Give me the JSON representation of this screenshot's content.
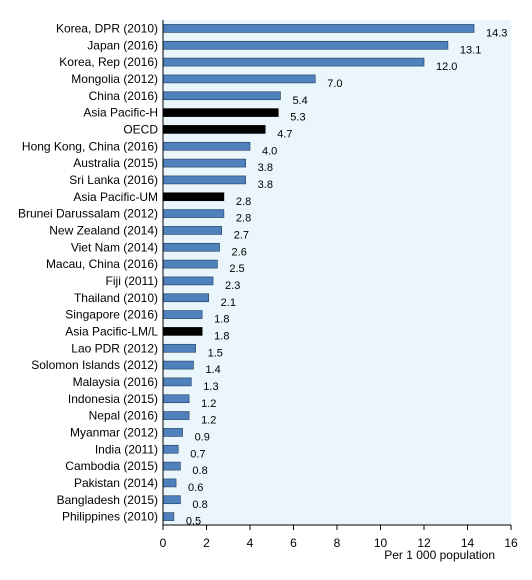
{
  "chart_data": {
    "type": "bar",
    "orientation": "horizontal",
    "title": "",
    "xlabel": "Per 1 000 population",
    "ylabel": "",
    "xlim": [
      0,
      16
    ],
    "xticks": [
      0,
      2,
      4,
      6,
      8,
      10,
      12,
      14,
      16
    ],
    "grid": false,
    "legend": "none",
    "colors": {
      "country": "#4f81bd",
      "aggregate": "#000000",
      "plot_background": "#eaf6fb"
    },
    "categories": [
      "Korea, DPR (2010)",
      "Japan (2016)",
      "Korea, Rep (2016)",
      "Mongolia (2012)",
      "China (2016)",
      "Asia Pacific-H",
      "OECD",
      "Hong Kong, China (2016)",
      "Australia (2015)",
      "Sri Lanka (2016)",
      "Asia Pacific-UM",
      "Brunei Darussalam (2012)",
      "New Zealand (2014)",
      "Viet Nam (2014)",
      "Macau, China (2016)",
      "Fiji (2011)",
      "Thailand (2010)",
      "Singapore (2016)",
      "Asia Pacific-LM/L",
      "Lao PDR (2012)",
      "Solomon Islands (2012)",
      "Malaysia (2016)",
      "Indonesia (2015)",
      "Nepal (2016)",
      "Myanmar (2012)",
      "India (2011)",
      "Cambodia (2015)",
      "Pakistan (2014)",
      "Bangladesh (2015)",
      "Philippines (2010)"
    ],
    "values": [
      14.3,
      13.1,
      12.0,
      7.0,
      5.4,
      5.3,
      4.7,
      4.0,
      3.8,
      3.8,
      2.8,
      2.8,
      2.7,
      2.6,
      2.5,
      2.3,
      2.1,
      1.8,
      1.8,
      1.5,
      1.4,
      1.3,
      1.2,
      1.2,
      0.9,
      0.7,
      0.8,
      0.6,
      0.8,
      0.5
    ],
    "value_labels": [
      "14.3",
      "13.1",
      "12.0",
      "7.0",
      "5.4",
      "5.3",
      "4.7",
      "4.0",
      "3.8",
      "3.8",
      "2.8",
      "2.8",
      "2.7",
      "2.6",
      "2.5",
      "2.3",
      "2.1",
      "1.8",
      "1.8",
      "1.5",
      "1.4",
      "1.3",
      "1.2",
      "1.2",
      "0.9",
      "0.7",
      "0.8",
      "0.6",
      "0.8",
      "0.5"
    ],
    "highlighted": [
      "Asia Pacific-H",
      "OECD",
      "Asia Pacific-UM",
      "Asia Pacific-LM/L"
    ]
  }
}
